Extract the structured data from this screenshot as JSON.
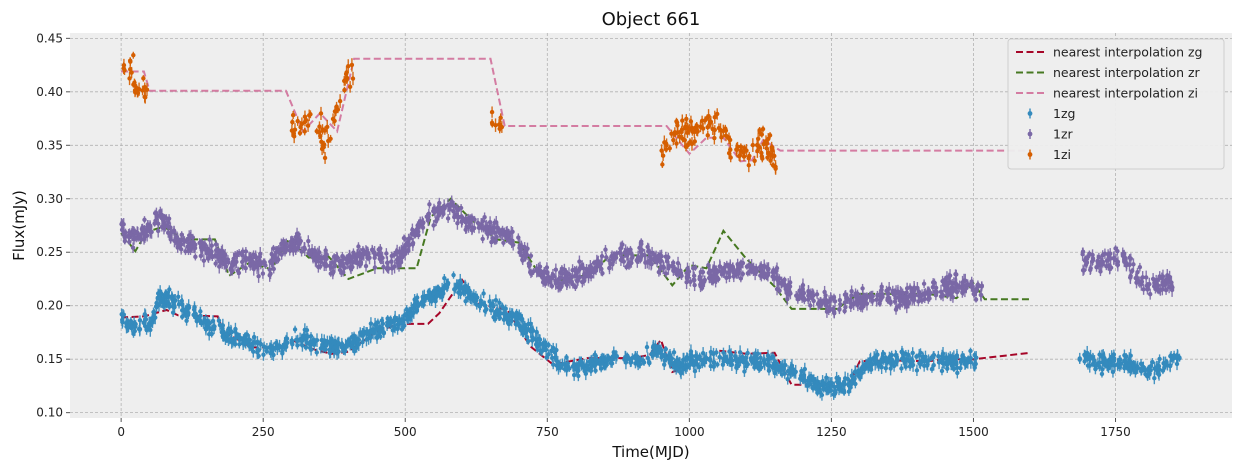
{
  "chart_data": {
    "type": "scatter",
    "title": "Object 661",
    "xlabel": "Time(MJD)",
    "ylabel": "Flux(mJy)",
    "xlim": [
      -90,
      1955
    ],
    "ylim": [
      0.095,
      0.455
    ],
    "xticks": [
      0,
      250,
      500,
      750,
      1000,
      1250,
      1500,
      1750
    ],
    "yticks": [
      0.1,
      0.15,
      0.2,
      0.25,
      0.3,
      0.35,
      0.4,
      0.45
    ],
    "ytick_labels": [
      "0.10",
      "0.15",
      "0.20",
      "0.25",
      "0.30",
      "0.35",
      "0.40",
      "0.45"
    ],
    "grid": true,
    "legend_position": "top-right",
    "colors": {
      "background": "#eeeeee",
      "zg_line": "#a60628",
      "zr_line": "#467821",
      "zi_line": "#d47ca2",
      "zg_points": "#348abd",
      "zr_points": "#7a68a6",
      "zi_points": "#d55e00"
    },
    "interpolation_series": [
      {
        "name": "nearest interpolation zg",
        "key": "zg_line",
        "x": [
          0,
          40,
          80,
          100,
          170,
          180,
          230,
          280,
          300,
          340,
          370,
          400,
          450,
          490,
          540,
          560,
          600,
          630,
          680,
          720,
          760,
          820,
          900,
          930,
          950,
          970,
          1000,
          1050,
          1100,
          1150,
          1180,
          1250,
          1280,
          1300,
          1350,
          1420,
          1450,
          1500,
          1600
        ],
        "y": [
          0.189,
          0.19,
          0.196,
          0.191,
          0.19,
          0.176,
          0.161,
          0.161,
          0.168,
          0.159,
          0.155,
          0.157,
          0.176,
          0.183,
          0.183,
          0.193,
          0.224,
          0.202,
          0.196,
          0.162,
          0.145,
          0.151,
          0.151,
          0.154,
          0.168,
          0.138,
          0.143,
          0.158,
          0.155,
          0.156,
          0.126,
          0.126,
          0.126,
          0.148,
          0.149,
          0.148,
          0.15,
          0.15,
          0.156
        ]
      },
      {
        "name": "nearest interpolation zr",
        "key": "zr_line",
        "x": [
          0,
          25,
          45,
          75,
          110,
          165,
          190,
          225,
          265,
          295,
          330,
          365,
          400,
          450,
          520,
          545,
          580,
          615,
          660,
          700,
          745,
          800,
          830,
          860,
          930,
          970,
          1000,
          1030,
          1060,
          1100,
          1150,
          1180,
          1260,
          1280,
          1300,
          1350,
          1420,
          1470,
          1500,
          1520,
          1600
        ],
        "y": [
          0.268,
          0.251,
          0.269,
          0.274,
          0.262,
          0.262,
          0.228,
          0.24,
          0.234,
          0.262,
          0.245,
          0.246,
          0.225,
          0.235,
          0.235,
          0.283,
          0.3,
          0.281,
          0.262,
          0.259,
          0.222,
          0.226,
          0.231,
          0.247,
          0.247,
          0.219,
          0.238,
          0.235,
          0.27,
          0.244,
          0.218,
          0.197,
          0.197,
          0.205,
          0.211,
          0.211,
          0.211,
          0.207,
          0.221,
          0.206,
          0.206
        ]
      },
      {
        "name": "nearest interpolation zi",
        "key": "zi_line",
        "x": [
          0,
          40,
          50,
          290,
          320,
          350,
          380,
          410,
          650,
          675,
          690,
          850,
          960,
          1000,
          1030,
          1060,
          1090,
          1110,
          1130,
          1160,
          1600
        ],
        "y": [
          0.419,
          0.419,
          0.401,
          0.401,
          0.363,
          0.38,
          0.363,
          0.431,
          0.431,
          0.368,
          0.368,
          0.368,
          0.368,
          0.342,
          0.357,
          0.357,
          0.335,
          0.336,
          0.355,
          0.345,
          0.345
        ]
      }
    ],
    "scatter_series": [
      {
        "name": "1zg",
        "key": "zg_points",
        "anchors": [
          [
            0,
            0.188
          ],
          [
            20,
            0.18
          ],
          [
            50,
            0.182
          ],
          [
            70,
            0.208
          ],
          [
            90,
            0.204
          ],
          [
            110,
            0.197
          ],
          [
            160,
            0.18
          ],
          [
            190,
            0.172
          ],
          [
            210,
            0.168
          ],
          [
            240,
            0.16
          ],
          [
            280,
            0.16
          ],
          [
            300,
            0.168
          ],
          [
            330,
            0.168
          ],
          [
            380,
            0.16
          ],
          [
            400,
            0.162
          ],
          [
            450,
            0.178
          ],
          [
            490,
            0.184
          ],
          [
            540,
            0.206
          ],
          [
            580,
            0.222
          ],
          [
            600,
            0.216
          ],
          [
            630,
            0.204
          ],
          [
            660,
            0.196
          ],
          [
            700,
            0.186
          ],
          [
            730,
            0.168
          ],
          [
            770,
            0.146
          ],
          [
            800,
            0.142
          ],
          [
            830,
            0.145
          ],
          [
            870,
            0.15
          ],
          [
            920,
            0.152
          ],
          [
            950,
            0.157
          ],
          [
            980,
            0.144
          ],
          [
            1000,
            0.146
          ],
          [
            1040,
            0.152
          ],
          [
            1080,
            0.15
          ],
          [
            1110,
            0.148
          ],
          [
            1140,
            0.147
          ],
          [
            1160,
            0.142
          ],
          [
            1230,
            0.124
          ],
          [
            1280,
            0.126
          ],
          [
            1320,
            0.148
          ],
          [
            1420,
            0.15
          ],
          [
            1470,
            0.146
          ],
          [
            1500,
            0.15
          ],
          [
            1690,
            0.153
          ],
          [
            1730,
            0.145
          ],
          [
            1760,
            0.15
          ],
          [
            1800,
            0.138
          ],
          [
            1860,
            0.15
          ]
        ],
        "gaps": [
          [
            1505,
            1685
          ]
        ],
        "jitter": 0.012,
        "counts": [
          4,
          2,
          2,
          0
        ]
      },
      {
        "name": "1zr",
        "key": "zr_points",
        "anchors": [
          [
            0,
            0.27
          ],
          [
            20,
            0.262
          ],
          [
            50,
            0.274
          ],
          [
            70,
            0.283
          ],
          [
            100,
            0.262
          ],
          [
            160,
            0.25
          ],
          [
            190,
            0.24
          ],
          [
            220,
            0.242
          ],
          [
            260,
            0.236
          ],
          [
            290,
            0.256
          ],
          [
            320,
            0.258
          ],
          [
            350,
            0.243
          ],
          [
            380,
            0.238
          ],
          [
            420,
            0.244
          ],
          [
            440,
            0.25
          ],
          [
            480,
            0.238
          ],
          [
            540,
            0.285
          ],
          [
            580,
            0.291
          ],
          [
            610,
            0.278
          ],
          [
            640,
            0.273
          ],
          [
            670,
            0.266
          ],
          [
            700,
            0.258
          ],
          [
            730,
            0.232
          ],
          [
            770,
            0.224
          ],
          [
            800,
            0.229
          ],
          [
            830,
            0.236
          ],
          [
            870,
            0.245
          ],
          [
            920,
            0.248
          ],
          [
            960,
            0.238
          ],
          [
            990,
            0.23
          ],
          [
            1020,
            0.226
          ],
          [
            1060,
            0.232
          ],
          [
            1100,
            0.236
          ],
          [
            1140,
            0.232
          ],
          [
            1170,
            0.216
          ],
          [
            1260,
            0.198
          ],
          [
            1290,
            0.206
          ],
          [
            1420,
            0.21
          ],
          [
            1470,
            0.22
          ],
          [
            1510,
            0.214
          ],
          [
            1690,
            0.242
          ],
          [
            1730,
            0.24
          ],
          [
            1760,
            0.246
          ],
          [
            1800,
            0.22
          ],
          [
            1850,
            0.222
          ]
        ],
        "gaps": [
          [
            1515,
            1685
          ]
        ],
        "jitter": 0.014,
        "counts": [
          4,
          2,
          2,
          0
        ]
      },
      {
        "name": "1zi",
        "key": "zi_points",
        "anchors": [
          [
            0,
            0.417
          ],
          [
            20,
            0.418
          ],
          [
            30,
            0.4
          ],
          [
            45,
            0.401
          ],
          [
            320,
            0.368
          ],
          [
            340,
            0.378
          ],
          [
            360,
            0.35
          ],
          [
            380,
            0.384
          ],
          [
            400,
            0.418
          ],
          [
            660,
            0.368
          ],
          [
            960,
            0.345
          ],
          [
            980,
            0.365
          ],
          [
            1000,
            0.362
          ],
          [
            1030,
            0.368
          ],
          [
            1060,
            0.36
          ],
          [
            1080,
            0.348
          ],
          [
            1100,
            0.34
          ],
          [
            1130,
            0.352
          ],
          [
            1150,
            0.338
          ]
        ],
        "gaps": [
          [
            50,
            300
          ],
          [
            410,
            650
          ],
          [
            670,
            950
          ],
          [
            1160,
            2000
          ]
        ],
        "jitter": 0.02,
        "counts": [
          3,
          1,
          1,
          0
        ]
      }
    ]
  }
}
